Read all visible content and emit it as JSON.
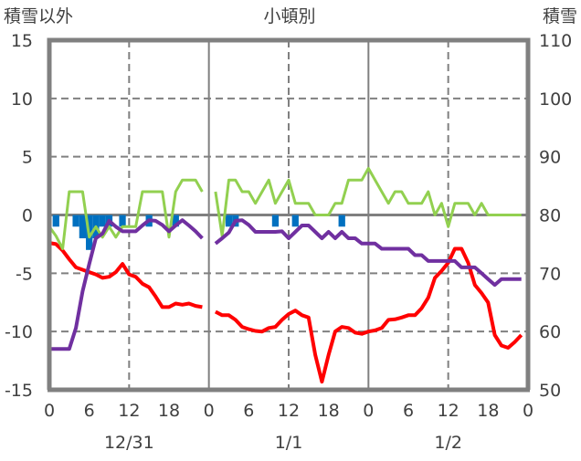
{
  "chart_data": {
    "type": "line",
    "title": "小頓別",
    "left_axis_label": "積雪以外",
    "right_axis_label": "積雪",
    "left_ylim": [
      -15,
      15
    ],
    "left_ticks": [
      15,
      10,
      5,
      0,
      -5,
      -10,
      -15
    ],
    "right_ylim": [
      50,
      110
    ],
    "right_ticks": [
      110,
      100,
      90,
      80,
      70,
      60,
      50
    ],
    "x_hours_range": [
      0,
      72
    ],
    "x_tick_labels": [
      "0",
      "6",
      "12",
      "18",
      "0",
      "6",
      "12",
      "18",
      "0",
      "6",
      "12",
      "18",
      "0"
    ],
    "date_labels": [
      {
        "label": "12/31",
        "hour": 12
      },
      {
        "label": "1/1",
        "hour": 36
      },
      {
        "label": "1/2",
        "hour": 60
      }
    ],
    "grid": true,
    "series": [
      {
        "name": "temperature",
        "axis": "left",
        "color": "#ff0000",
        "values": [
          -2.4,
          -2.5,
          -3.05,
          -3.8,
          -4.5,
          -4.7,
          -4.9,
          -5.1,
          -5.4,
          -5.3,
          -4.9,
          -4.2,
          -5.1,
          -5.3,
          -5.9,
          -6.2,
          -7.0,
          -7.9,
          -7.9,
          -7.6,
          -7.7,
          -7.6,
          -7.8,
          -7.9,
          null,
          -8.3,
          -8.6,
          -8.6,
          -9.0,
          -9.6,
          -9.8,
          -9.95,
          -10.0,
          -9.7,
          -9.6,
          -9.0,
          -8.5,
          -8.2,
          -8.6,
          -8.8,
          -12.0,
          -14.3,
          -12.0,
          -10.0,
          -9.6,
          -9.7,
          -10.1,
          -10.2,
          -10.0,
          -9.9,
          -9.7,
          -9.0,
          -8.95,
          -8.8,
          -8.6,
          -8.6,
          -8.0,
          -7.1,
          -5.4,
          -4.8,
          -4.1,
          -2.9,
          -2.9,
          -4.1,
          -6.0,
          -6.7,
          -7.5,
          -10.3,
          -11.2,
          -11.4,
          -10.9,
          -10.3
        ]
      },
      {
        "name": "wind",
        "axis": "left",
        "color": "#92d050",
        "values": [
          -1,
          -1.8,
          -2.9,
          2,
          2,
          2,
          -1.9,
          -1,
          -1.9,
          -1,
          -1.9,
          -1,
          -1,
          -1,
          2,
          2,
          2,
          2,
          -1.9,
          2,
          3,
          3,
          3,
          2,
          null,
          2,
          -1.8,
          3,
          3,
          2,
          2,
          1,
          2,
          3,
          1,
          2,
          3,
          1,
          1,
          1,
          0,
          0,
          0,
          1,
          1,
          3,
          3,
          3,
          4,
          3,
          2,
          1,
          2,
          2,
          1,
          1,
          1,
          2,
          0,
          1,
          -1,
          1,
          1,
          1,
          0,
          1,
          0,
          0,
          0,
          0,
          0,
          0
        ]
      },
      {
        "name": "snow_depth",
        "axis": "right",
        "color": "#7030a0",
        "values": [
          57,
          57,
          57,
          57,
          60.6,
          66.9,
          71.6,
          76,
          76.8,
          79,
          78,
          77.2,
          77.2,
          77.2,
          78.2,
          79.1,
          79,
          78.3,
          77.2,
          78.2,
          79.1,
          78.2,
          77.2,
          76,
          null,
          75.1,
          76,
          77,
          79,
          79.1,
          78.3,
          77.1,
          77.1,
          77.1,
          77.1,
          77.2,
          76,
          77.1,
          78.2,
          78.2,
          77.1,
          76,
          77.1,
          76,
          77.1,
          76,
          76,
          75.1,
          75.1,
          75.1,
          74.2,
          74.2,
          74.2,
          74.2,
          74.2,
          73.1,
          73.1,
          72.1,
          72.1,
          72.1,
          72.1,
          72.1,
          71,
          71,
          71,
          70,
          69,
          68,
          69,
          69,
          69,
          69
        ]
      },
      {
        "name": "snowfall",
        "type": "bar",
        "axis": "left",
        "color": "#0070c0",
        "values": [
          0,
          -1,
          0,
          0,
          -1,
          -2,
          -3,
          -2,
          -1,
          -1,
          0,
          -1,
          0,
          0,
          0,
          -1,
          0,
          0,
          0,
          -1,
          0,
          0,
          0,
          0,
          null,
          0,
          0,
          -1,
          -1,
          0,
          0,
          0,
          0,
          0,
          -1,
          0,
          0,
          -1,
          0,
          0,
          0,
          0,
          0,
          0,
          -1,
          0,
          0,
          0,
          0,
          0,
          0,
          0,
          0,
          0,
          0,
          0,
          0,
          0,
          0,
          0,
          0,
          0,
          0,
          0,
          0,
          0,
          0,
          0,
          0,
          0,
          0,
          0
        ]
      }
    ]
  }
}
